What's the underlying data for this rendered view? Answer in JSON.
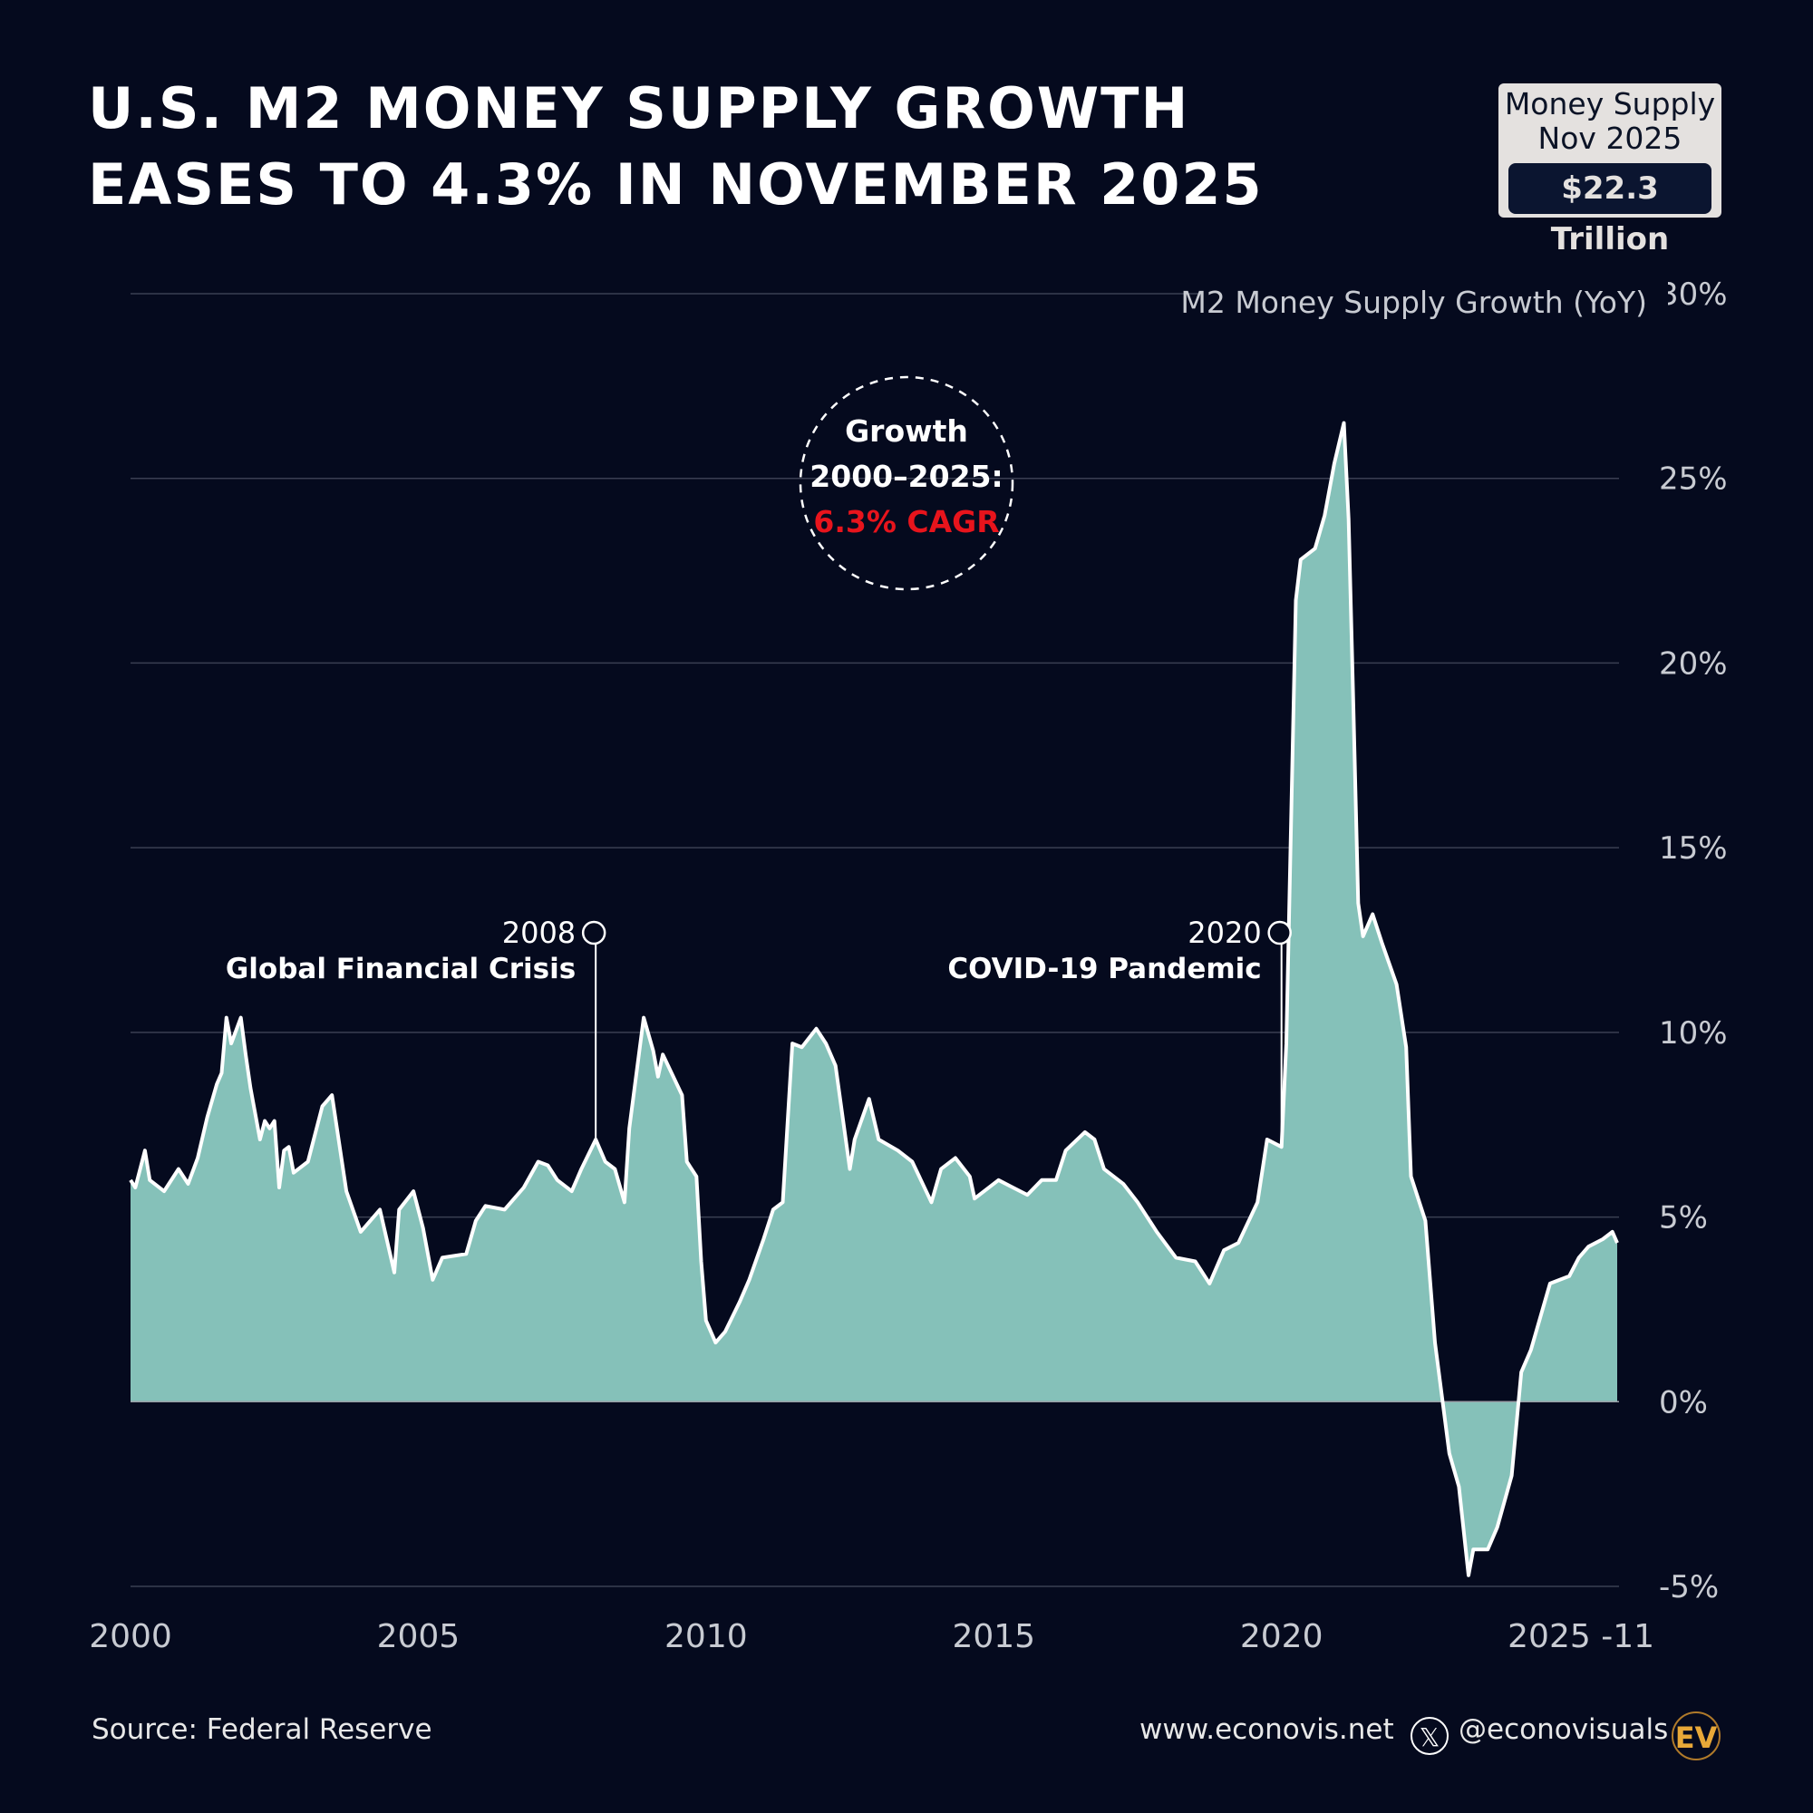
{
  "title": {
    "line1": "U.S. M2 MONEY SUPPLY GROWTH",
    "line2": "EASES TO 4.3% IN NOVEMBER 2025"
  },
  "badge": {
    "line1": "Money Supply",
    "line2": "Nov 2025",
    "value": "$22.3 Trillion"
  },
  "cagr_callout": {
    "line1": "Growth",
    "line2": "2000–2025:",
    "line3": "6.3% CAGR",
    "highlight_color": "#e8141c"
  },
  "annotations": [
    {
      "date": "2008-02",
      "year": "2008",
      "label": "Global Financial Crisis"
    },
    {
      "date": "2020-01",
      "year": "2020",
      "label": "COVID-19 Pandemic"
    }
  ],
  "footer": {
    "source": "Source: Federal Reserve",
    "website": "www.econovis.net",
    "handle": "@econovisuals",
    "logo_text": "EV"
  },
  "colors": {
    "background": "#050a1e",
    "area_fill": "#85c1b9",
    "line": "#ffffff",
    "logo": "#e8a838"
  },
  "chart_data": {
    "type": "area",
    "title": "U.S. M2 MONEY SUPPLY GROWTH EASES TO 4.3% IN NOVEMBER 2025",
    "ylabel": "M2 Money Supply Growth (YoY)",
    "xlabel": "",
    "y_axis_position": "right",
    "ylim": [
      -5,
      30
    ],
    "y_ticks": [
      30,
      25,
      20,
      15,
      10,
      5,
      0,
      -5
    ],
    "y_tick_labels": [
      "30%",
      "25%",
      "20%",
      "15%",
      "10%",
      "5%",
      "0%",
      "-5%"
    ],
    "xlim": [
      "2000-01",
      "2025-11"
    ],
    "x_ticks": [
      "2000-01",
      "2005-01",
      "2010-01",
      "2015-01",
      "2020-01",
      "2025-11"
    ],
    "x_tick_labels": [
      "2000",
      "2005",
      "2010",
      "2015",
      "2020",
      "2025 -11"
    ],
    "grid": true,
    "series": [
      {
        "points": [
          [
            "2000-01",
            6.0
          ],
          [
            "2000-02",
            5.8
          ],
          [
            "2000-04",
            6.8
          ],
          [
            "2000-05",
            6.0
          ],
          [
            "2000-08",
            5.7
          ],
          [
            "2000-11",
            6.3
          ],
          [
            "2001-01",
            5.9
          ],
          [
            "2001-03",
            6.6
          ],
          [
            "2001-05",
            7.7
          ],
          [
            "2001-07",
            8.6
          ],
          [
            "2001-08",
            8.9
          ],
          [
            "2001-09",
            10.4
          ],
          [
            "2001-10",
            9.7
          ],
          [
            "2001-12",
            10.4
          ],
          [
            "2002-01",
            9.4
          ],
          [
            "2002-02",
            8.5
          ],
          [
            "2002-04",
            7.1
          ],
          [
            "2002-05",
            7.6
          ],
          [
            "2002-06",
            7.4
          ],
          [
            "2002-07",
            7.6
          ],
          [
            "2002-08",
            5.8
          ],
          [
            "2002-09",
            6.8
          ],
          [
            "2002-10",
            6.9
          ],
          [
            "2002-11",
            6.2
          ],
          [
            "2003-02",
            6.5
          ],
          [
            "2003-05",
            8.0
          ],
          [
            "2003-07",
            8.3
          ],
          [
            "2003-10",
            5.7
          ],
          [
            "2004-01",
            4.6
          ],
          [
            "2004-05",
            5.2
          ],
          [
            "2004-08",
            3.5
          ],
          [
            "2004-09",
            5.2
          ],
          [
            "2004-12",
            5.7
          ],
          [
            "2005-02",
            4.7
          ],
          [
            "2005-04",
            3.3
          ],
          [
            "2005-06",
            3.9
          ],
          [
            "2005-11",
            4.0
          ],
          [
            "2006-01",
            4.9
          ],
          [
            "2006-03",
            5.3
          ],
          [
            "2006-07",
            5.2
          ],
          [
            "2006-11",
            5.8
          ],
          [
            "2007-02",
            6.5
          ],
          [
            "2007-04",
            6.4
          ],
          [
            "2007-06",
            6.0
          ],
          [
            "2007-09",
            5.7
          ],
          [
            "2007-11",
            6.3
          ],
          [
            "2008-02",
            7.1
          ],
          [
            "2008-04",
            6.5
          ],
          [
            "2008-06",
            6.3
          ],
          [
            "2008-08",
            5.4
          ],
          [
            "2008-09",
            7.4
          ],
          [
            "2008-12",
            10.4
          ],
          [
            "2009-02",
            9.5
          ],
          [
            "2009-03",
            8.8
          ],
          [
            "2009-04",
            9.4
          ],
          [
            "2009-08",
            8.3
          ],
          [
            "2009-09",
            6.5
          ],
          [
            "2009-11",
            6.1
          ],
          [
            "2009-12",
            3.8
          ],
          [
            "2010-01",
            2.2
          ],
          [
            "2010-03",
            1.6
          ],
          [
            "2010-05",
            1.9
          ],
          [
            "2010-08",
            2.7
          ],
          [
            "2010-10",
            3.3
          ],
          [
            "2011-01",
            4.4
          ],
          [
            "2011-03",
            5.2
          ],
          [
            "2011-05",
            5.4
          ],
          [
            "2011-07",
            9.7
          ],
          [
            "2011-09",
            9.6
          ],
          [
            "2011-12",
            10.1
          ],
          [
            "2012-02",
            9.7
          ],
          [
            "2012-04",
            9.1
          ],
          [
            "2012-07",
            6.3
          ],
          [
            "2012-08",
            7.1
          ],
          [
            "2012-11",
            8.2
          ],
          [
            "2013-01",
            7.1
          ],
          [
            "2013-05",
            6.8
          ],
          [
            "2013-08",
            6.5
          ],
          [
            "2013-12",
            5.4
          ],
          [
            "2014-02",
            6.3
          ],
          [
            "2014-05",
            6.6
          ],
          [
            "2014-08",
            6.1
          ],
          [
            "2014-09",
            5.5
          ],
          [
            "2015-02",
            6.0
          ],
          [
            "2015-05",
            5.8
          ],
          [
            "2015-08",
            5.6
          ],
          [
            "2015-11",
            6.0
          ],
          [
            "2016-02",
            6.0
          ],
          [
            "2016-04",
            6.8
          ],
          [
            "2016-08",
            7.3
          ],
          [
            "2016-10",
            7.1
          ],
          [
            "2016-12",
            6.3
          ],
          [
            "2017-04",
            5.9
          ],
          [
            "2017-07",
            5.4
          ],
          [
            "2017-11",
            4.6
          ],
          [
            "2018-03",
            3.9
          ],
          [
            "2018-07",
            3.8
          ],
          [
            "2018-10",
            3.2
          ],
          [
            "2019-01",
            4.1
          ],
          [
            "2019-04",
            4.3
          ],
          [
            "2019-08",
            5.4
          ],
          [
            "2019-10",
            7.1
          ],
          [
            "2020-01",
            6.9
          ],
          [
            "2020-02",
            9.7
          ],
          [
            "2020-04",
            21.7
          ],
          [
            "2020-05",
            22.8
          ],
          [
            "2020-08",
            23.1
          ],
          [
            "2020-10",
            24.0
          ],
          [
            "2020-12",
            25.4
          ],
          [
            "2021-02",
            26.5
          ],
          [
            "2021-03",
            23.9
          ],
          [
            "2021-04",
            18.8
          ],
          [
            "2021-05",
            13.5
          ],
          [
            "2021-06",
            12.6
          ],
          [
            "2021-08",
            13.2
          ],
          [
            "2021-10",
            12.4
          ],
          [
            "2022-01",
            11.3
          ],
          [
            "2022-03",
            9.6
          ],
          [
            "2022-04",
            6.1
          ],
          [
            "2022-07",
            4.9
          ],
          [
            "2022-09",
            1.6
          ],
          [
            "2022-12",
            -1.4
          ],
          [
            "2023-02",
            -2.3
          ],
          [
            "2023-04",
            -4.7
          ],
          [
            "2023-05",
            -4.0
          ],
          [
            "2023-08",
            -4.0
          ],
          [
            "2023-10",
            -3.4
          ],
          [
            "2024-01",
            -2.0
          ],
          [
            "2024-03",
            0.8
          ],
          [
            "2024-05",
            1.4
          ],
          [
            "2024-09",
            3.2
          ],
          [
            "2025-01",
            3.4
          ],
          [
            "2025-03",
            3.9
          ],
          [
            "2025-05",
            4.2
          ],
          [
            "2025-08",
            4.4
          ],
          [
            "2025-10",
            4.6
          ],
          [
            "2025-11",
            4.3
          ]
        ]
      }
    ]
  }
}
